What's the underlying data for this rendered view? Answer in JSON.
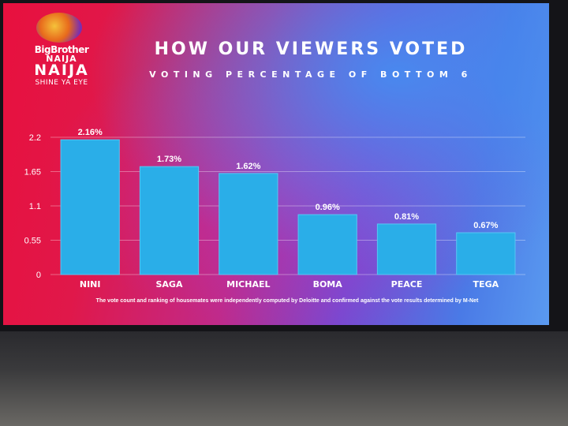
{
  "logo": {
    "line1": "BigBrother",
    "line2": "NAIJA",
    "line3": "NAIJA",
    "tagline": "SHINE YA EYE"
  },
  "header": {
    "title": "HOW OUR VIEWERS VOTED",
    "subtitle": "VOTING PERCENTAGE OF BOTTOM 6"
  },
  "footnote": "The vote count and ranking of housemates were independently computed by Deloitte and confirmed against the vote results determined by M-Net",
  "colors": {
    "bar": "#2aaee8",
    "bar_edge": "#58c6f4",
    "text": "#ffffff"
  },
  "chart_data": {
    "type": "bar",
    "title": "HOW OUR VIEWERS VOTED",
    "subtitle": "VOTING PERCENTAGE OF BOTTOM 6",
    "xlabel": "",
    "ylabel": "",
    "categories": [
      "NINI",
      "SAGA",
      "MICHAEL",
      "BOMA",
      "PEACE",
      "TEGA"
    ],
    "values": [
      2.16,
      1.73,
      1.62,
      0.96,
      0.81,
      0.67
    ],
    "data_labels": [
      "2.16%",
      "1.73%",
      "1.62%",
      "0.96%",
      "0.81%",
      "0.67%"
    ],
    "yticks": [
      0,
      0.55,
      1.1,
      1.65,
      2.2
    ],
    "ytick_labels": [
      "0",
      "0.55",
      "1.1",
      "1.65",
      "2.2"
    ],
    "ylim": [
      0,
      2.2
    ],
    "grid": true,
    "legend": "none"
  }
}
